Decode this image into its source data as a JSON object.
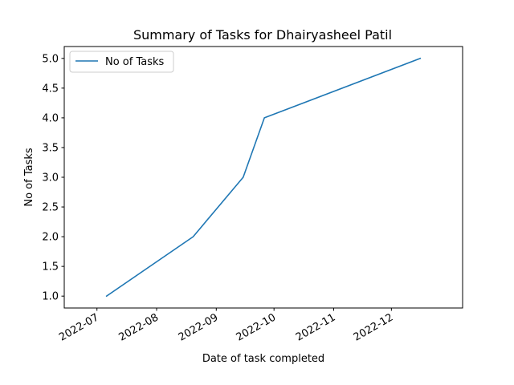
{
  "chart_data": {
    "type": "line",
    "title": "Summary of Tasks for Dhairyasheel Patil",
    "xlabel": "Date of task completed",
    "ylabel": "No of Tasks",
    "x": [
      "2022-07-06",
      "2022-08-20",
      "2022-09-15",
      "2022-09-26",
      "2022-12-16"
    ],
    "series": [
      {
        "name": "No of Tasks",
        "values": [
          1,
          2,
          3,
          4,
          5
        ],
        "color": "#1f77b4"
      }
    ],
    "xlim": [
      "2022-06-14",
      "2023-01-07"
    ],
    "ylim": [
      0.8,
      5.2
    ],
    "xticks": [
      {
        "date": "2022-07-01",
        "label": "2022-07"
      },
      {
        "date": "2022-08-01",
        "label": "2022-08"
      },
      {
        "date": "2022-09-01",
        "label": "2022-09"
      },
      {
        "date": "2022-10-01",
        "label": "2022-10"
      },
      {
        "date": "2022-11-01",
        "label": "2022-11"
      },
      {
        "date": "2022-12-01",
        "label": "2022-12"
      }
    ],
    "yticks": [
      1.0,
      1.5,
      2.0,
      2.5,
      3.0,
      3.5,
      4.0,
      4.5,
      5.0
    ],
    "ytick_labels": [
      "1.0",
      "1.5",
      "2.0",
      "2.5",
      "3.0",
      "3.5",
      "4.0",
      "4.5",
      "5.0"
    ],
    "grid": false,
    "legend_position": "upper-left"
  }
}
